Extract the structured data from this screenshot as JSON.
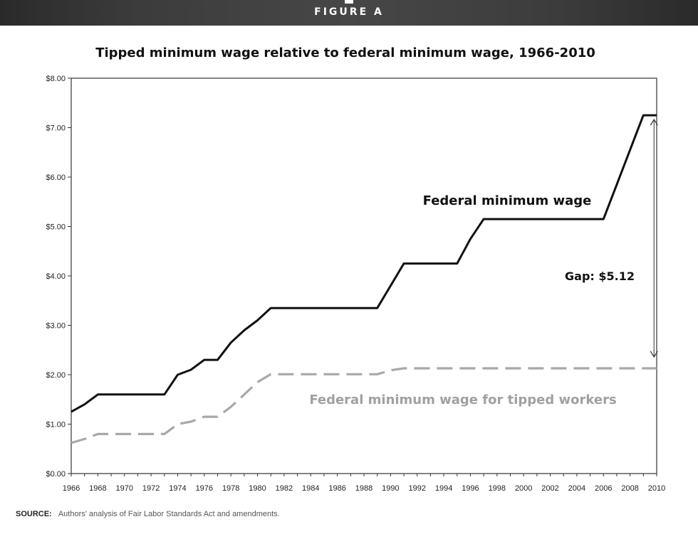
{
  "header": {
    "figure_label": "FIGURE A"
  },
  "chart_data": {
    "type": "line",
    "title": "Tipped minimum wage relative to federal minimum wage, 1966-2010",
    "xlabel": "",
    "ylabel": "",
    "xlim": [
      1966,
      2010
    ],
    "ylim": [
      0,
      8
    ],
    "y_ticks": [
      "$0.00",
      "$1.00",
      "$2.00",
      "$3.00",
      "$4.00",
      "$5.00",
      "$6.00",
      "$7.00",
      "$8.00"
    ],
    "x_ticks": [
      "1966",
      "1968",
      "1970",
      "1972",
      "1974",
      "1976",
      "1978",
      "1980",
      "1982",
      "1984",
      "1986",
      "1988",
      "1990",
      "1992",
      "1994",
      "1996",
      "1998",
      "2000",
      "2002",
      "2004",
      "2006",
      "2008",
      "2010"
    ],
    "grid": false,
    "series": [
      {
        "name": "Federal minimum wage",
        "style": "solid",
        "color": "#111111",
        "points": [
          [
            1966,
            1.25
          ],
          [
            1967,
            1.4
          ],
          [
            1968,
            1.6
          ],
          [
            1973,
            1.6
          ],
          [
            1974,
            2.0
          ],
          [
            1975,
            2.1
          ],
          [
            1976,
            2.3
          ],
          [
            1977,
            2.3
          ],
          [
            1978,
            2.65
          ],
          [
            1979,
            2.9
          ],
          [
            1980,
            3.1
          ],
          [
            1981,
            3.35
          ],
          [
            1989,
            3.35
          ],
          [
            1990,
            3.8
          ],
          [
            1991,
            4.25
          ],
          [
            1995,
            4.25
          ],
          [
            1996,
            4.75
          ],
          [
            1997,
            5.15
          ],
          [
            2006,
            5.15
          ],
          [
            2007,
            5.85
          ],
          [
            2008,
            6.55
          ],
          [
            2009,
            7.25
          ],
          [
            2010,
            7.25
          ]
        ]
      },
      {
        "name": "Federal minimum wage for tipped workers",
        "style": "dashed",
        "color": "#a8a8a8",
        "points": [
          [
            1966,
            0.62
          ],
          [
            1967,
            0.7
          ],
          [
            1968,
            0.8
          ],
          [
            1973,
            0.8
          ],
          [
            1974,
            1.0
          ],
          [
            1975,
            1.05
          ],
          [
            1976,
            1.15
          ],
          [
            1977,
            1.15
          ],
          [
            1978,
            1.35
          ],
          [
            1979,
            1.6
          ],
          [
            1980,
            1.85
          ],
          [
            1981,
            2.01
          ],
          [
            1989,
            2.01
          ],
          [
            1990,
            2.09
          ],
          [
            1991,
            2.13
          ],
          [
            2010,
            2.13
          ]
        ]
      }
    ],
    "annotations": [
      {
        "text": "Gap: $5.12",
        "x": 2009.8,
        "y_from": 2.13,
        "y_to": 7.25
      }
    ]
  },
  "footer": {
    "source_label": "SOURCE:",
    "source_text": "Authors' analysis of Fair Labor Standards Act and amendments."
  }
}
